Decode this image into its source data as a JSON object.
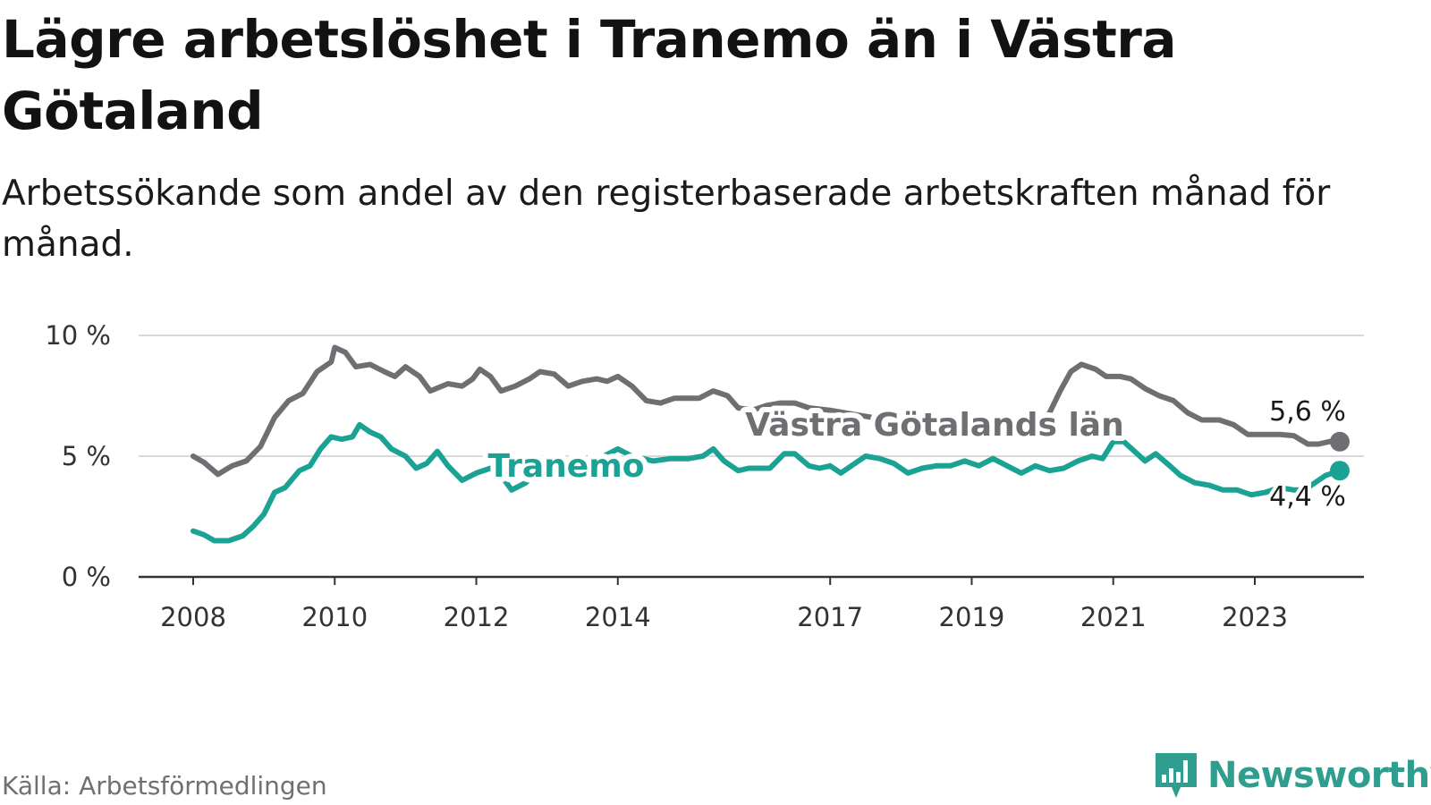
{
  "title": "Lägre arbetslöshet i Tranemo än i Västra Götaland",
  "subtitle": "Arbetssökande som andel av den registerbaserade arbetskraften månad för månad.",
  "source": "Källa: Arbetsförmedlingen",
  "brand": "Newsworthy",
  "colors": {
    "tranemo": "#1aa394",
    "vastra": "#6e6e73",
    "grid": "#d9d9d9",
    "axis": "#333333",
    "brand": "#2f9e8f"
  },
  "chart_data": {
    "type": "line",
    "y_ticks": [
      {
        "value": 0,
        "label": "0 %"
      },
      {
        "value": 5,
        "label": "5 %"
      },
      {
        "value": 10,
        "label": "10 %"
      }
    ],
    "ylim": [
      0,
      10
    ],
    "x_ticks": [
      {
        "value": 2008,
        "label": "2008"
      },
      {
        "value": 2010,
        "label": "2010"
      },
      {
        "value": 2012,
        "label": "2012"
      },
      {
        "value": 2014,
        "label": "2014"
      },
      {
        "value": 2017,
        "label": "2017"
      },
      {
        "value": 2019,
        "label": "2019"
      },
      {
        "value": 2021,
        "label": "2021"
      },
      {
        "value": 2023,
        "label": "2023"
      }
    ],
    "xlim": [
      2007.2,
      2024.5
    ],
    "series": [
      {
        "name": "Västra Götalands län",
        "label": "Västra Götalands län",
        "color_key": "vastra",
        "end_label": "5,6 %",
        "points": [
          [
            2008.0,
            5.0
          ],
          [
            2008.15,
            4.75
          ],
          [
            2008.35,
            4.25
          ],
          [
            2008.55,
            4.6
          ],
          [
            2008.75,
            4.8
          ],
          [
            2008.95,
            5.4
          ],
          [
            2009.15,
            6.6
          ],
          [
            2009.35,
            7.3
          ],
          [
            2009.55,
            7.6
          ],
          [
            2009.75,
            8.5
          ],
          [
            2009.95,
            8.9
          ],
          [
            2010.0,
            9.5
          ],
          [
            2010.15,
            9.3
          ],
          [
            2010.3,
            8.7
          ],
          [
            2010.5,
            8.8
          ],
          [
            2010.7,
            8.5
          ],
          [
            2010.85,
            8.3
          ],
          [
            2011.0,
            8.7
          ],
          [
            2011.2,
            8.3
          ],
          [
            2011.35,
            7.7
          ],
          [
            2011.6,
            8.0
          ],
          [
            2011.8,
            7.9
          ],
          [
            2011.95,
            8.2
          ],
          [
            2012.05,
            8.6
          ],
          [
            2012.2,
            8.3
          ],
          [
            2012.35,
            7.7
          ],
          [
            2012.55,
            7.9
          ],
          [
            2012.75,
            8.2
          ],
          [
            2012.9,
            8.5
          ],
          [
            2013.1,
            8.4
          ],
          [
            2013.3,
            7.9
          ],
          [
            2013.5,
            8.1
          ],
          [
            2013.7,
            8.2
          ],
          [
            2013.85,
            8.1
          ],
          [
            2014.0,
            8.3
          ],
          [
            2014.2,
            7.9
          ],
          [
            2014.4,
            7.3
          ],
          [
            2014.6,
            7.2
          ],
          [
            2014.8,
            7.4
          ],
          [
            2015.0,
            7.4
          ],
          [
            2015.15,
            7.4
          ],
          [
            2015.35,
            7.7
          ],
          [
            2015.55,
            7.5
          ],
          [
            2015.7,
            7.0
          ],
          [
            2015.9,
            6.9
          ],
          [
            2016.1,
            7.1
          ],
          [
            2016.3,
            7.2
          ],
          [
            2016.5,
            7.2
          ],
          [
            2016.7,
            7.0
          ],
          [
            2017.0,
            6.9
          ],
          [
            2017.2,
            6.8
          ],
          [
            2017.6,
            6.6
          ],
          [
            2018.0,
            6.4
          ],
          [
            2018.5,
            6.1
          ],
          [
            2019.0,
            6.0
          ],
          [
            2019.5,
            6.0
          ],
          [
            2019.9,
            6.1
          ],
          [
            2020.1,
            6.8
          ],
          [
            2020.25,
            7.7
          ],
          [
            2020.4,
            8.5
          ],
          [
            2020.55,
            8.8
          ],
          [
            2020.75,
            8.6
          ],
          [
            2020.9,
            8.3
          ],
          [
            2021.1,
            8.3
          ],
          [
            2021.25,
            8.2
          ],
          [
            2021.45,
            7.8
          ],
          [
            2021.65,
            7.5
          ],
          [
            2021.85,
            7.3
          ],
          [
            2022.05,
            6.8
          ],
          [
            2022.25,
            6.5
          ],
          [
            2022.5,
            6.5
          ],
          [
            2022.7,
            6.3
          ],
          [
            2022.9,
            5.9
          ],
          [
            2023.1,
            5.9
          ],
          [
            2023.35,
            5.9
          ],
          [
            2023.55,
            5.85
          ],
          [
            2023.75,
            5.5
          ],
          [
            2023.9,
            5.5
          ],
          [
            2024.05,
            5.6
          ],
          [
            2024.2,
            5.6
          ]
        ]
      },
      {
        "name": "Tranemo",
        "label": "Tranemo",
        "color_key": "tranemo",
        "end_label": "4,4 %",
        "points": [
          [
            2008.0,
            1.9
          ],
          [
            2008.15,
            1.75
          ],
          [
            2008.3,
            1.5
          ],
          [
            2008.5,
            1.5
          ],
          [
            2008.7,
            1.7
          ],
          [
            2008.85,
            2.1
          ],
          [
            2009.0,
            2.6
          ],
          [
            2009.15,
            3.5
          ],
          [
            2009.3,
            3.7
          ],
          [
            2009.5,
            4.4
          ],
          [
            2009.65,
            4.6
          ],
          [
            2009.8,
            5.3
          ],
          [
            2009.95,
            5.8
          ],
          [
            2010.1,
            5.7
          ],
          [
            2010.25,
            5.8
          ],
          [
            2010.35,
            6.3
          ],
          [
            2010.5,
            6.0
          ],
          [
            2010.65,
            5.8
          ],
          [
            2010.8,
            5.3
          ],
          [
            2011.0,
            5.0
          ],
          [
            2011.15,
            4.5
          ],
          [
            2011.3,
            4.7
          ],
          [
            2011.45,
            5.2
          ],
          [
            2011.6,
            4.6
          ],
          [
            2011.8,
            4.0
          ],
          [
            2012.0,
            4.3
          ],
          [
            2012.2,
            4.5
          ],
          [
            2012.35,
            4.2
          ],
          [
            2012.5,
            3.6
          ],
          [
            2012.7,
            3.9
          ],
          [
            2012.9,
            4.5
          ],
          [
            2013.2,
            4.6
          ],
          [
            2013.5,
            4.9
          ],
          [
            2013.8,
            5.0
          ],
          [
            2014.0,
            5.3
          ],
          [
            2014.2,
            5.0
          ],
          [
            2014.5,
            4.8
          ],
          [
            2014.75,
            4.9
          ],
          [
            2015.0,
            4.9
          ],
          [
            2015.2,
            5.0
          ],
          [
            2015.35,
            5.3
          ],
          [
            2015.5,
            4.8
          ],
          [
            2015.7,
            4.4
          ],
          [
            2015.85,
            4.5
          ],
          [
            2016.0,
            4.5
          ],
          [
            2016.15,
            4.5
          ],
          [
            2016.35,
            5.1
          ],
          [
            2016.5,
            5.1
          ],
          [
            2016.7,
            4.6
          ],
          [
            2016.85,
            4.5
          ],
          [
            2017.0,
            4.6
          ],
          [
            2017.15,
            4.3
          ],
          [
            2017.3,
            4.6
          ],
          [
            2017.5,
            5.0
          ],
          [
            2017.7,
            4.9
          ],
          [
            2017.9,
            4.7
          ],
          [
            2018.1,
            4.3
          ],
          [
            2018.3,
            4.5
          ],
          [
            2018.5,
            4.6
          ],
          [
            2018.7,
            4.6
          ],
          [
            2018.9,
            4.8
          ],
          [
            2019.1,
            4.6
          ],
          [
            2019.3,
            4.9
          ],
          [
            2019.5,
            4.6
          ],
          [
            2019.7,
            4.3
          ],
          [
            2019.9,
            4.6
          ],
          [
            2020.1,
            4.4
          ],
          [
            2020.3,
            4.5
          ],
          [
            2020.5,
            4.8
          ],
          [
            2020.7,
            5.0
          ],
          [
            2020.85,
            4.9
          ],
          [
            2021.0,
            5.6
          ],
          [
            2021.15,
            5.6
          ],
          [
            2021.3,
            5.2
          ],
          [
            2021.45,
            4.8
          ],
          [
            2021.6,
            5.1
          ],
          [
            2021.8,
            4.6
          ],
          [
            2021.95,
            4.2
          ],
          [
            2022.15,
            3.9
          ],
          [
            2022.35,
            3.8
          ],
          [
            2022.55,
            3.6
          ],
          [
            2022.75,
            3.6
          ],
          [
            2022.95,
            3.4
          ],
          [
            2023.15,
            3.5
          ],
          [
            2023.35,
            3.7
          ],
          [
            2023.55,
            3.6
          ],
          [
            2023.7,
            3.6
          ],
          [
            2023.85,
            3.9
          ],
          [
            2024.0,
            4.2
          ],
          [
            2024.2,
            4.4
          ]
        ]
      }
    ]
  }
}
